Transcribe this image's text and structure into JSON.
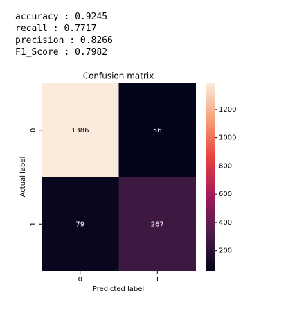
{
  "metrics": [
    "accuracy : 0.9245",
    "recall : 0.7717",
    "precision : 0.8266",
    "F1_Score : 0.7982"
  ],
  "chart_data": {
    "type": "heatmap",
    "title": "Confusion matrix",
    "xlabel": "Predicted label",
    "ylabel": "Actual label",
    "x": [
      "0",
      "1"
    ],
    "y": [
      "0",
      "1"
    ],
    "values": [
      [
        1386,
        56
      ],
      [
        79,
        267
      ]
    ],
    "clim": [
      56,
      1386
    ],
    "cticks": [
      200,
      400,
      600,
      800,
      1000,
      1200
    ],
    "colorscale": [
      "#03051a",
      "#4c1d4b",
      "#a11a5b",
      "#e83f3f",
      "#f69c73",
      "#faebdd"
    ]
  }
}
